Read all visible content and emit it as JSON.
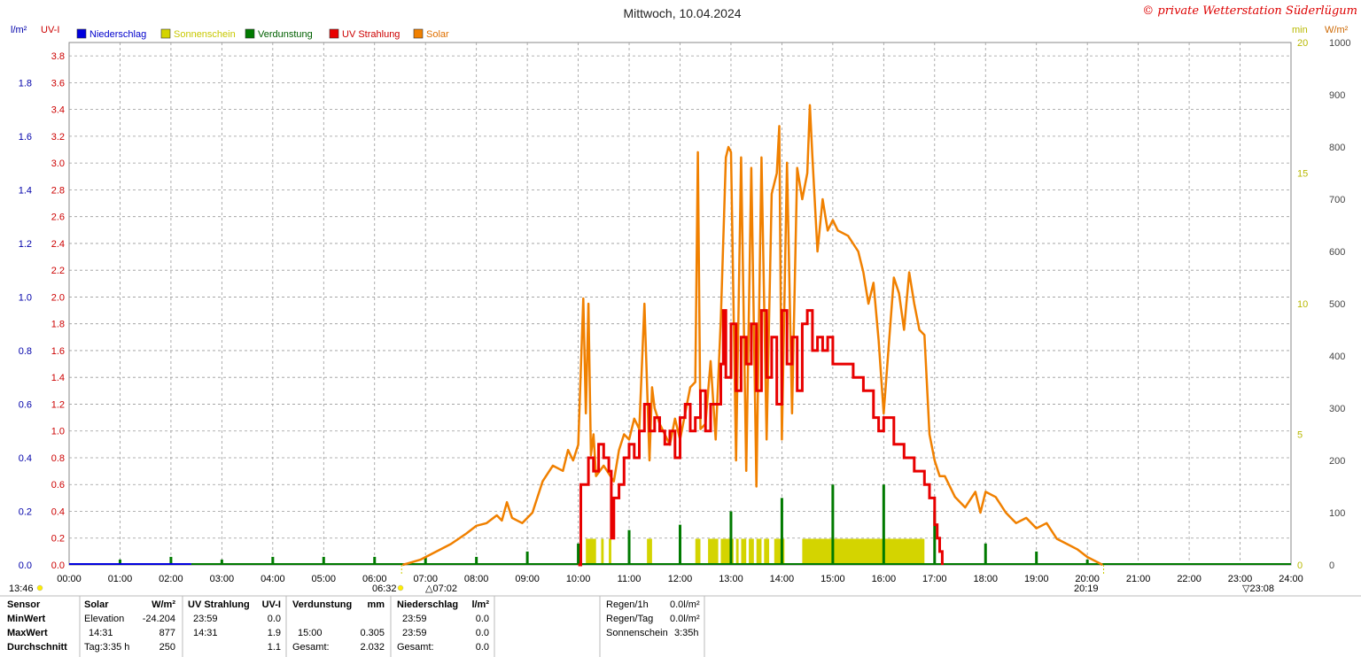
{
  "title": "Mittwoch, 10.04.2024",
  "copyright": "© private Wetterstation Süderlügum",
  "axis_units": {
    "left_outer": "l/m²",
    "left_inner": "UV-I",
    "right_inner": "min",
    "right_outer": "W/m²"
  },
  "legend": [
    {
      "label": "Niederschlag",
      "color": "#0000dd",
      "text_color": "#0000cc"
    },
    {
      "label": "Sonnenschein",
      "color": "#d4d400",
      "text_color": "#c8c800"
    },
    {
      "label": "Verdunstung",
      "color": "#007a00",
      "text_color": "#006000"
    },
    {
      "label": "UV Strahlung",
      "color": "#e80000",
      "text_color": "#cc0000"
    },
    {
      "label": "Solar",
      "color": "#f08000",
      "text_color": "#e07000"
    }
  ],
  "colors": {
    "precip_axis": "#0000aa",
    "uv_axis": "#cc0000",
    "sun_axis": "#b8b800",
    "solar_axis": "#444444",
    "grid": "#999999"
  },
  "chart_data": {
    "type": "line",
    "x_unit": "time",
    "xticks": [
      "00:00",
      "01:00",
      "02:00",
      "03:00",
      "04:00",
      "05:00",
      "06:00",
      "07:00",
      "08:00",
      "09:00",
      "10:00",
      "11:00",
      "12:00",
      "13:00",
      "14:00",
      "15:00",
      "16:00",
      "17:00",
      "18:00",
      "19:00",
      "20:00",
      "21:00",
      "22:00",
      "23:00",
      "24:00"
    ],
    "xlim_hours": [
      0,
      24
    ],
    "axes": {
      "precip": {
        "unit": "l/m²",
        "ylim": [
          0,
          1.95
        ],
        "ticks": [
          "0.0",
          "0.2",
          "0.4",
          "0.6",
          "0.8",
          "1.0",
          "1.2",
          "1.4",
          "1.6",
          "1.8"
        ]
      },
      "uv": {
        "unit": "UV-I",
        "ylim": [
          0,
          3.9
        ],
        "ticks": [
          "0.0",
          "0.2",
          "0.4",
          "0.6",
          "0.8",
          "1.0",
          "1.2",
          "1.4",
          "1.6",
          "1.8",
          "2.0",
          "2.2",
          "2.4",
          "2.6",
          "2.8",
          "3.0",
          "3.2",
          "3.4",
          "3.6",
          "3.8"
        ]
      },
      "sunshine": {
        "unit": "min",
        "ylim": [
          0,
          20
        ],
        "ticks": [
          "0",
          "5",
          "10",
          "15",
          "20"
        ]
      },
      "solar": {
        "unit": "W/m²",
        "ylim": [
          0,
          1000
        ],
        "ticks": [
          "0",
          "100",
          "200",
          "300",
          "400",
          "500",
          "600",
          "700",
          "800",
          "900",
          "1000"
        ]
      }
    },
    "series": [
      {
        "name": "Solar",
        "axis": "solar",
        "color": "#f08000",
        "x": [
          6.55,
          6.9,
          7.2,
          7.5,
          7.8,
          8.0,
          8.2,
          8.4,
          8.5,
          8.6,
          8.7,
          8.9,
          9.1,
          9.3,
          9.5,
          9.7,
          9.8,
          9.9,
          10.0,
          10.1,
          10.15,
          10.2,
          10.25,
          10.3,
          10.35,
          10.5,
          10.7,
          10.8,
          10.9,
          11.0,
          11.1,
          11.2,
          11.3,
          11.4,
          11.45,
          11.5,
          11.6,
          11.8,
          11.9,
          12.0,
          12.2,
          12.3,
          12.35,
          12.4,
          12.5,
          12.6,
          12.7,
          12.8,
          12.9,
          12.95,
          13.0,
          13.1,
          13.2,
          13.3,
          13.4,
          13.5,
          13.6,
          13.7,
          13.8,
          13.9,
          13.95,
          14.0,
          14.1,
          14.2,
          14.3,
          14.4,
          14.5,
          14.55,
          14.6,
          14.7,
          14.8,
          14.9,
          15.0,
          15.1,
          15.3,
          15.5,
          15.6,
          15.7,
          15.8,
          15.9,
          16.0,
          16.2,
          16.3,
          16.4,
          16.5,
          16.6,
          16.7,
          16.8,
          16.9,
          17.0,
          17.1,
          17.2,
          17.4,
          17.6,
          17.8,
          17.9,
          18.0,
          18.2,
          18.4,
          18.6,
          18.8,
          19.0,
          19.2,
          19.4,
          19.6,
          19.8,
          20.0,
          20.2,
          20.3
        ],
        "y": [
          0,
          10,
          25,
          40,
          60,
          75,
          80,
          95,
          85,
          120,
          90,
          80,
          100,
          160,
          190,
          180,
          220,
          200,
          230,
          510,
          290,
          500,
          210,
          250,
          170,
          190,
          160,
          220,
          250,
          240,
          280,
          260,
          500,
          200,
          340,
          300,
          270,
          230,
          280,
          240,
          340,
          350,
          790,
          260,
          270,
          390,
          240,
          470,
          780,
          800,
          790,
          200,
          780,
          180,
          760,
          150,
          780,
          240,
          710,
          750,
          840,
          240,
          770,
          290,
          760,
          700,
          750,
          880,
          780,
          600,
          700,
          640,
          660,
          640,
          630,
          600,
          560,
          500,
          540,
          430,
          290,
          550,
          520,
          450,
          560,
          500,
          450,
          440,
          250,
          200,
          170,
          170,
          130,
          110,
          140,
          100,
          140,
          130,
          100,
          80,
          90,
          70,
          80,
          50,
          40,
          30,
          15,
          5,
          0
        ]
      },
      {
        "name": "UV Strahlung",
        "axis": "uv",
        "color": "#e80000",
        "x": [
          10.0,
          10.05,
          10.2,
          10.3,
          10.4,
          10.5,
          10.6,
          10.65,
          10.7,
          10.8,
          10.9,
          11.0,
          11.1,
          11.2,
          11.3,
          11.4,
          11.5,
          11.6,
          11.7,
          11.8,
          11.9,
          12.0,
          12.1,
          12.2,
          12.3,
          12.4,
          12.5,
          12.6,
          12.7,
          12.8,
          12.85,
          12.9,
          13.0,
          13.1,
          13.2,
          13.3,
          13.4,
          13.5,
          13.6,
          13.7,
          13.8,
          13.9,
          14.0,
          14.1,
          14.2,
          14.3,
          14.4,
          14.5,
          14.6,
          14.7,
          14.8,
          14.9,
          15.0,
          15.2,
          15.4,
          15.6,
          15.8,
          15.9,
          16.0,
          16.2,
          16.4,
          16.6,
          16.8,
          16.9,
          17.0,
          17.05,
          17.1,
          17.15
        ],
        "y": [
          0,
          0.6,
          0.8,
          0.7,
          0.9,
          0.8,
          0.7,
          0.2,
          0.5,
          0.6,
          0.8,
          0.9,
          0.8,
          1.0,
          1.2,
          1.0,
          1.1,
          1.0,
          0.9,
          1.0,
          0.8,
          1.1,
          1.2,
          1.0,
          1.1,
          1.3,
          1.0,
          1.2,
          1.2,
          1.5,
          1.9,
          1.4,
          1.8,
          1.3,
          1.7,
          1.5,
          1.8,
          1.3,
          1.9,
          1.4,
          1.7,
          1.2,
          1.9,
          1.5,
          1.7,
          1.3,
          1.8,
          1.9,
          1.6,
          1.7,
          1.6,
          1.7,
          1.5,
          1.5,
          1.4,
          1.3,
          1.1,
          1.0,
          1.1,
          0.9,
          0.8,
          0.7,
          0.6,
          0.5,
          0.3,
          0.2,
          0.1,
          0
        ]
      },
      {
        "name": "Verdunstung",
        "axis": "precip",
        "color": "#007a00",
        "x": [
          1.0,
          2.0,
          3.0,
          4.0,
          5.0,
          6.0,
          7.0,
          8.0,
          9.0,
          10.0,
          11.0,
          12.0,
          13.0,
          14.0,
          15.0,
          16.0,
          17.0,
          18.0,
          19.0,
          20.0
        ],
        "y": [
          0.02,
          0.03,
          0.02,
          0.03,
          0.03,
          0.03,
          0.03,
          0.03,
          0.05,
          0.08,
          0.13,
          0.15,
          0.2,
          0.25,
          0.3,
          0.3,
          0.2,
          0.08,
          0.05,
          0.02
        ]
      },
      {
        "name": "Sonnenschein",
        "axis": "sunshine",
        "color": "#d4d400",
        "intervals": [
          [
            10.15,
            10.35
          ],
          [
            10.45,
            10.5
          ],
          [
            10.6,
            10.65
          ],
          [
            11.35,
            11.45
          ],
          [
            12.3,
            12.4
          ],
          [
            12.55,
            12.75
          ],
          [
            12.8,
            13.05
          ],
          [
            13.1,
            13.15
          ],
          [
            13.2,
            13.3
          ],
          [
            13.35,
            13.45
          ],
          [
            13.5,
            13.6
          ],
          [
            13.65,
            13.75
          ],
          [
            13.85,
            14.05
          ],
          [
            14.4,
            16.8
          ]
        ],
        "value": 1
      }
    ]
  },
  "time_markers": {
    "left_time": "13:46",
    "sunrise_civil": "06:32",
    "sunrise": "07:02",
    "sunset": "20:19",
    "moon": "23:08"
  },
  "stats": {
    "headers": {
      "sensor": "Sensor",
      "solar": "Solar",
      "solar_unit": "W/m²",
      "uv": "UV Strahlung",
      "uv_unit": "UV-I",
      "evap": "Verdunstung",
      "evap_unit": "mm",
      "precip": "Niederschlag",
      "precip_unit": "l/m²"
    },
    "rows": [
      {
        "label": "MinWert",
        "solar_time": "Elevation",
        "solar_val": "-24.204",
        "uv_time": "23:59",
        "uv_val": "0.0",
        "evap_time": "",
        "evap_val": "",
        "precip_time": "23:59",
        "precip_val": "0.0"
      },
      {
        "label": "MaxWert",
        "solar_time": "14:31",
        "solar_val": "877",
        "uv_time": "14:31",
        "uv_val": "1.9",
        "evap_time": "15:00",
        "evap_val": "0.305",
        "precip_time": "23:59",
        "precip_val": "0.0"
      },
      {
        "label": "Durchschnitt",
        "solar_time": "Tag:3:35 h",
        "solar_val": "250",
        "uv_time": "",
        "uv_val": "1.1",
        "evap_time": "Gesamt:",
        "evap_val": "2.032",
        "precip_time": "Gesamt:",
        "precip_val": "0.0"
      }
    ],
    "summary": [
      {
        "label": "Regen/1h",
        "value": "0.0l/m²"
      },
      {
        "label": "Regen/Tag",
        "value": "0.0l/m²"
      },
      {
        "label": "Sonnenschein",
        "value": "3:35h"
      }
    ]
  }
}
